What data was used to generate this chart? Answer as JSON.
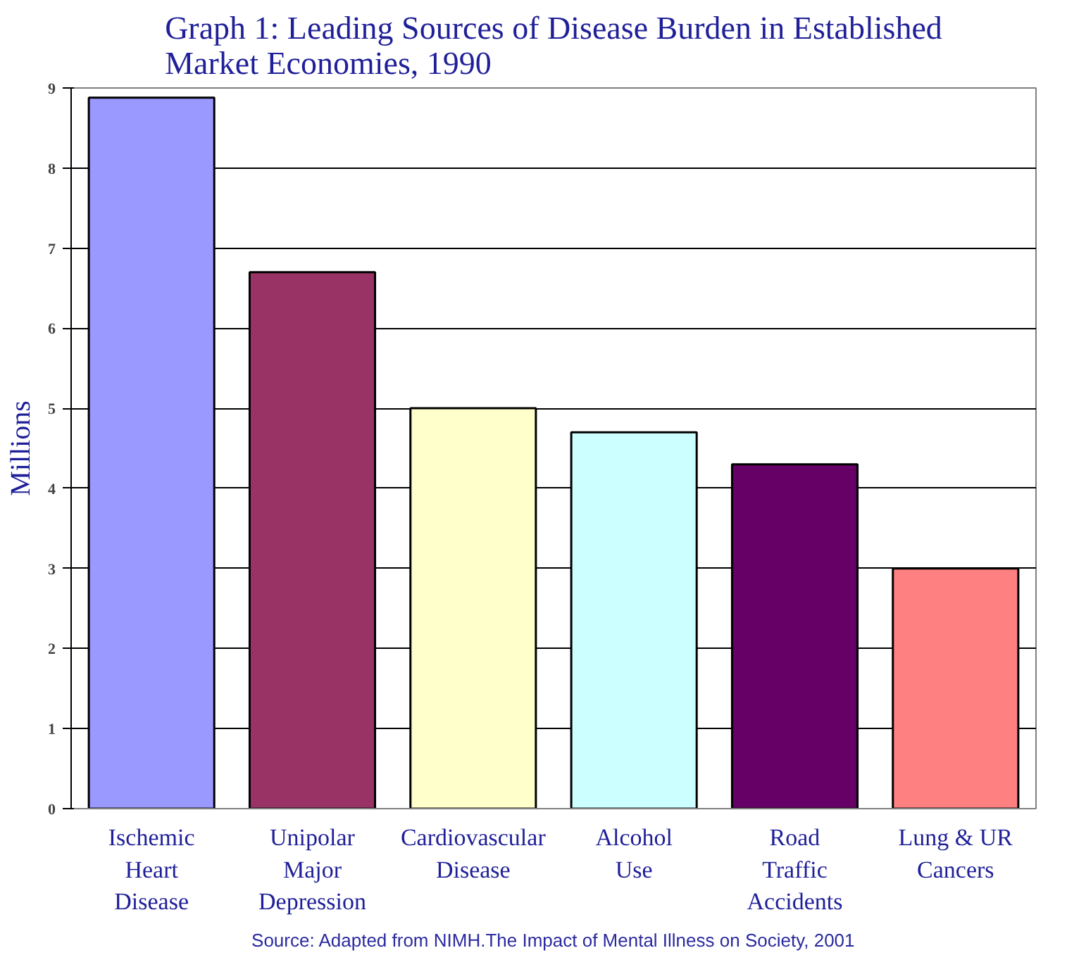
{
  "chart_data": {
    "type": "bar",
    "title": "Graph 1: Leading Sources of Disease Burden in Established Market Economies, 1990",
    "ylabel": "Millions",
    "categories": [
      "Ischemic Heart Disease",
      "Unipolar Major Depression",
      "Cardiovascular Disease",
      "Alcohol Use",
      "Road Traffic Accidents",
      "Lung & UR Cancers"
    ],
    "values": [
      8.88,
      6.7,
      5.0,
      4.7,
      4.3,
      3.0
    ],
    "colors": [
      "#9999ff",
      "#993366",
      "#ffffcc",
      "#ccffff",
      "#660066",
      "#ff8080"
    ],
    "ylim": [
      0,
      9
    ],
    "yticks": [
      0,
      1,
      2,
      3,
      4,
      5,
      6,
      7,
      8,
      9
    ],
    "grid": "y",
    "annotations": [
      "Source: Adapted from NIMH.The Impact of Mental Illness on Society, 2001"
    ]
  }
}
